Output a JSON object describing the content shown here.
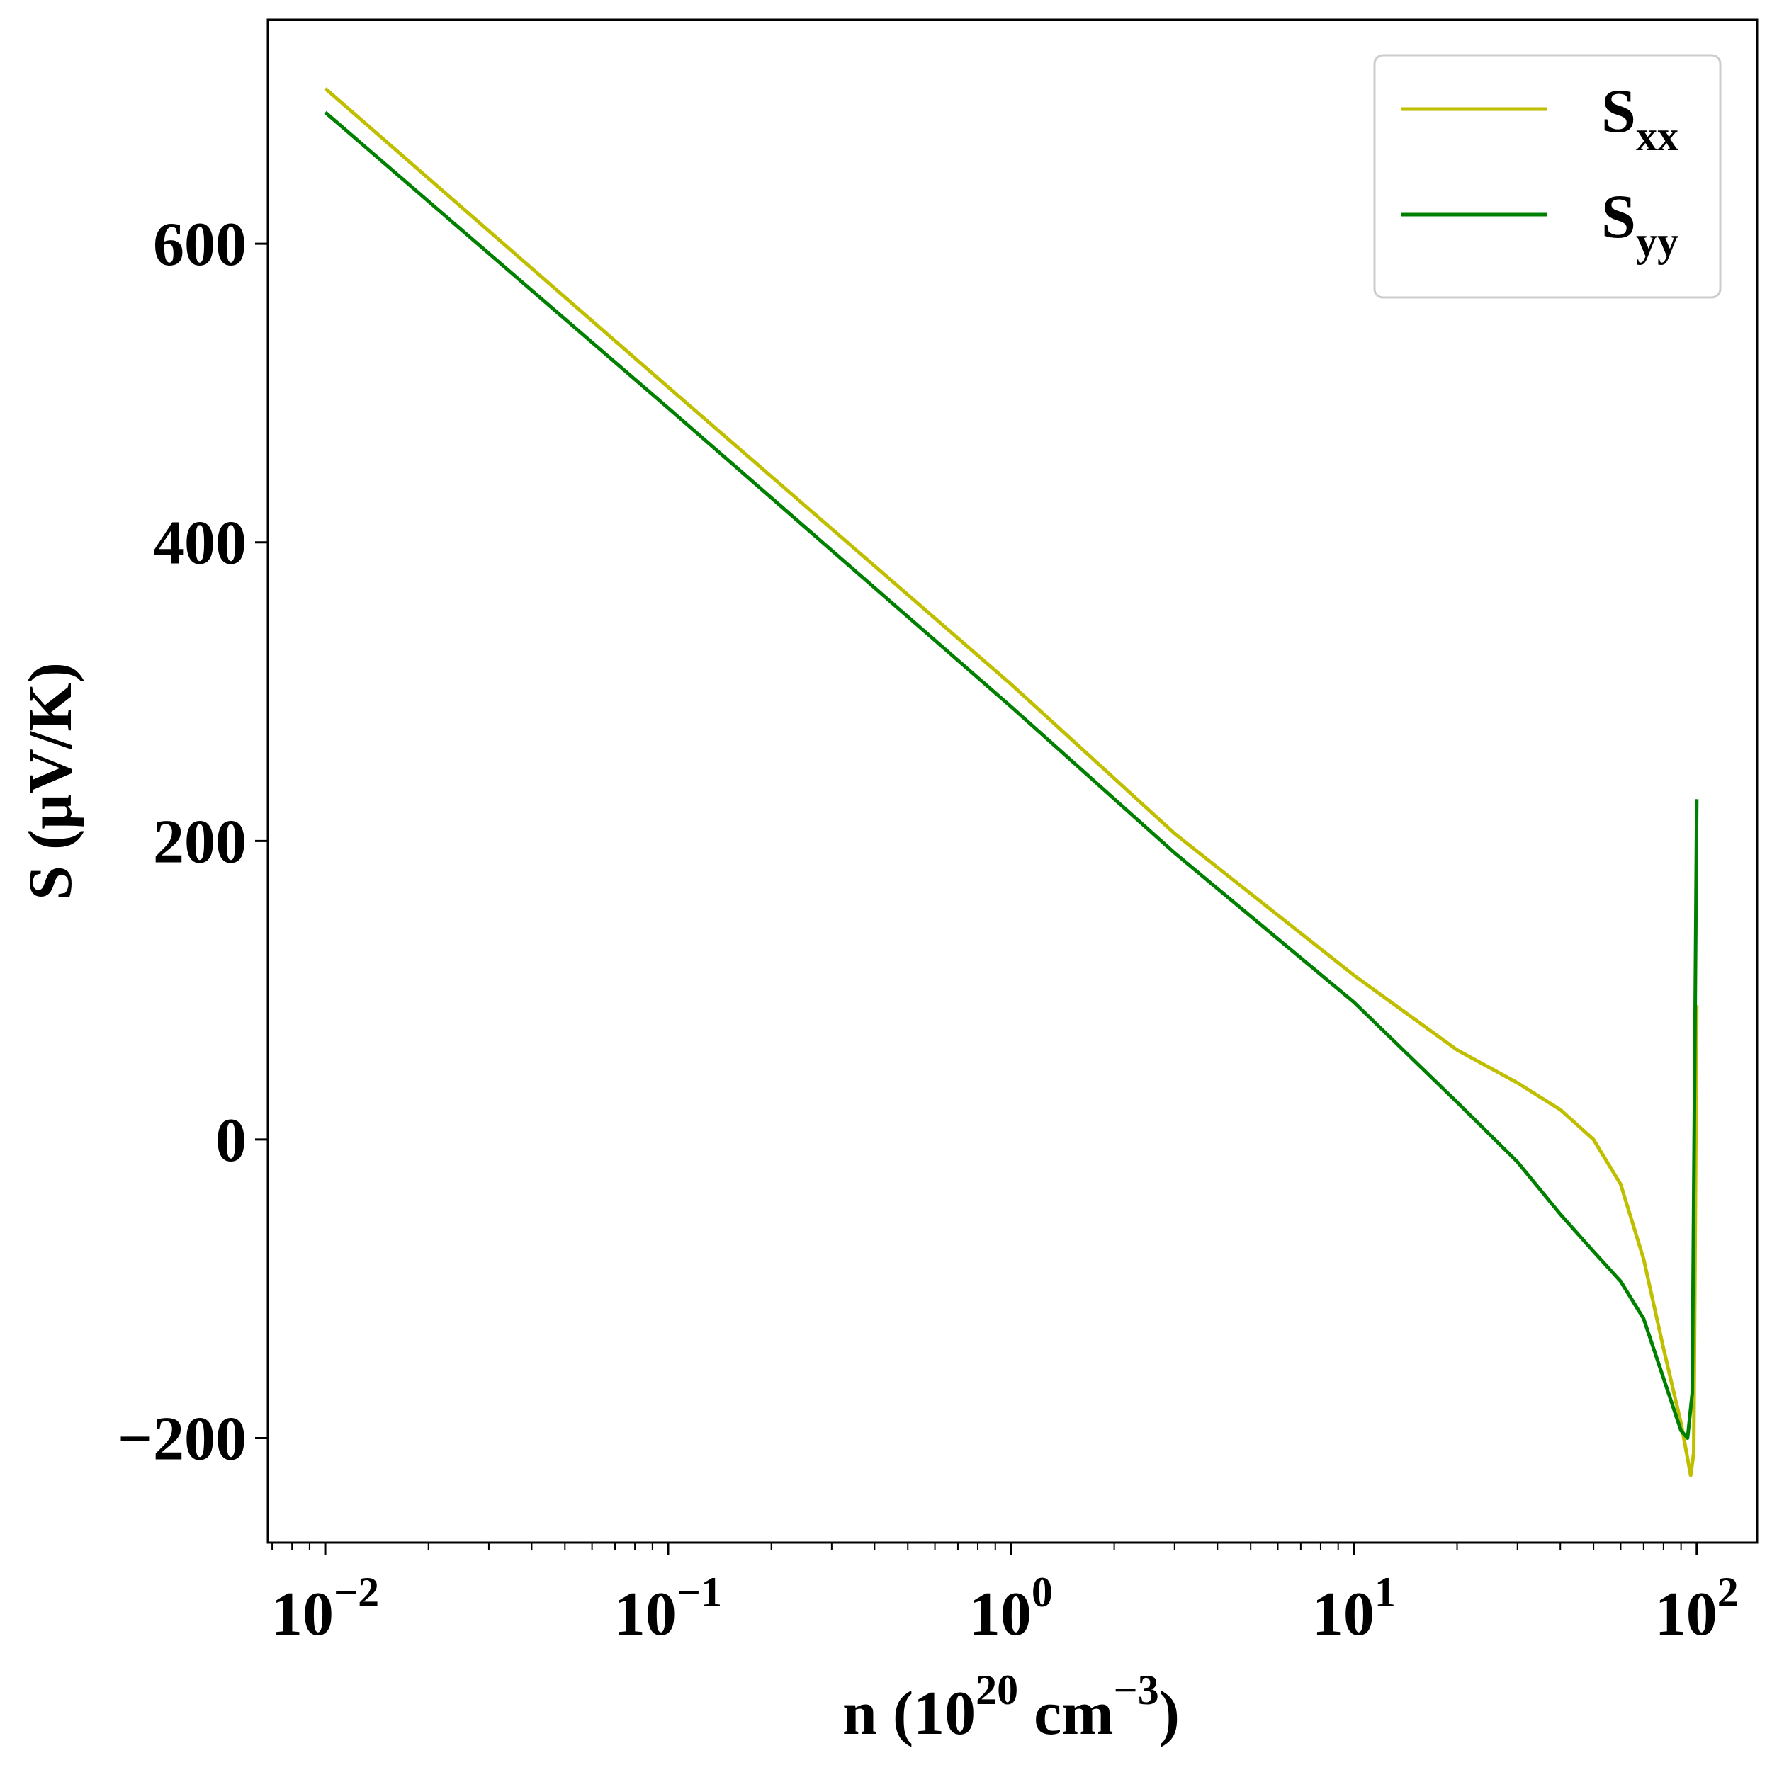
{
  "chart_data": {
    "type": "line",
    "xscale": "log",
    "xlim": [
      0.0068,
      150
    ],
    "ylim": [
      -270,
      750
    ],
    "grid": false,
    "legend_position": "top-right",
    "xlabel": {
      "prefix": "n (10",
      "sup1": "20",
      "middle": " cm",
      "sup2": "−3",
      "suffix": ")"
    },
    "ylabel": "S (μV/K)",
    "x_ticks": [
      {
        "base": "10",
        "exp": "−2",
        "value": 0.01
      },
      {
        "base": "10",
        "exp": "−1",
        "value": 0.1
      },
      {
        "base": "10",
        "exp": "0",
        "value": 1
      },
      {
        "base": "10",
        "exp": "1",
        "value": 10
      },
      {
        "base": "10",
        "exp": "2",
        "value": 100
      }
    ],
    "y_ticks": [
      {
        "label": "−200",
        "value": -200
      },
      {
        "label": "0",
        "value": 0
      },
      {
        "label": "200",
        "value": 200
      },
      {
        "label": "400",
        "value": 400
      },
      {
        "label": "600",
        "value": 600
      }
    ],
    "series": [
      {
        "name": "S",
        "sub": "xx",
        "color": "#bfbf00",
        "points": [
          [
            0.01,
            704
          ],
          [
            0.1,
            504
          ],
          [
            1,
            305
          ],
          [
            3,
            205
          ],
          [
            10,
            110
          ],
          [
            20,
            60
          ],
          [
            30,
            38
          ],
          [
            40,
            20
          ],
          [
            50,
            0
          ],
          [
            60,
            -30
          ],
          [
            70,
            -80
          ],
          [
            80,
            -140
          ],
          [
            90,
            -190
          ],
          [
            96,
            -225
          ],
          [
            98,
            -210
          ],
          [
            100,
            90
          ]
        ]
      },
      {
        "name": "S",
        "sub": "yy",
        "color": "#008000",
        "points": [
          [
            0.01,
            688
          ],
          [
            0.1,
            490
          ],
          [
            1,
            290
          ],
          [
            3,
            192
          ],
          [
            10,
            92
          ],
          [
            20,
            25
          ],
          [
            30,
            -15
          ],
          [
            40,
            -50
          ],
          [
            50,
            -75
          ],
          [
            60,
            -95
          ],
          [
            70,
            -120
          ],
          [
            80,
            -160
          ],
          [
            90,
            -195
          ],
          [
            94,
            -200
          ],
          [
            97,
            -170
          ],
          [
            100,
            228
          ]
        ]
      }
    ]
  }
}
